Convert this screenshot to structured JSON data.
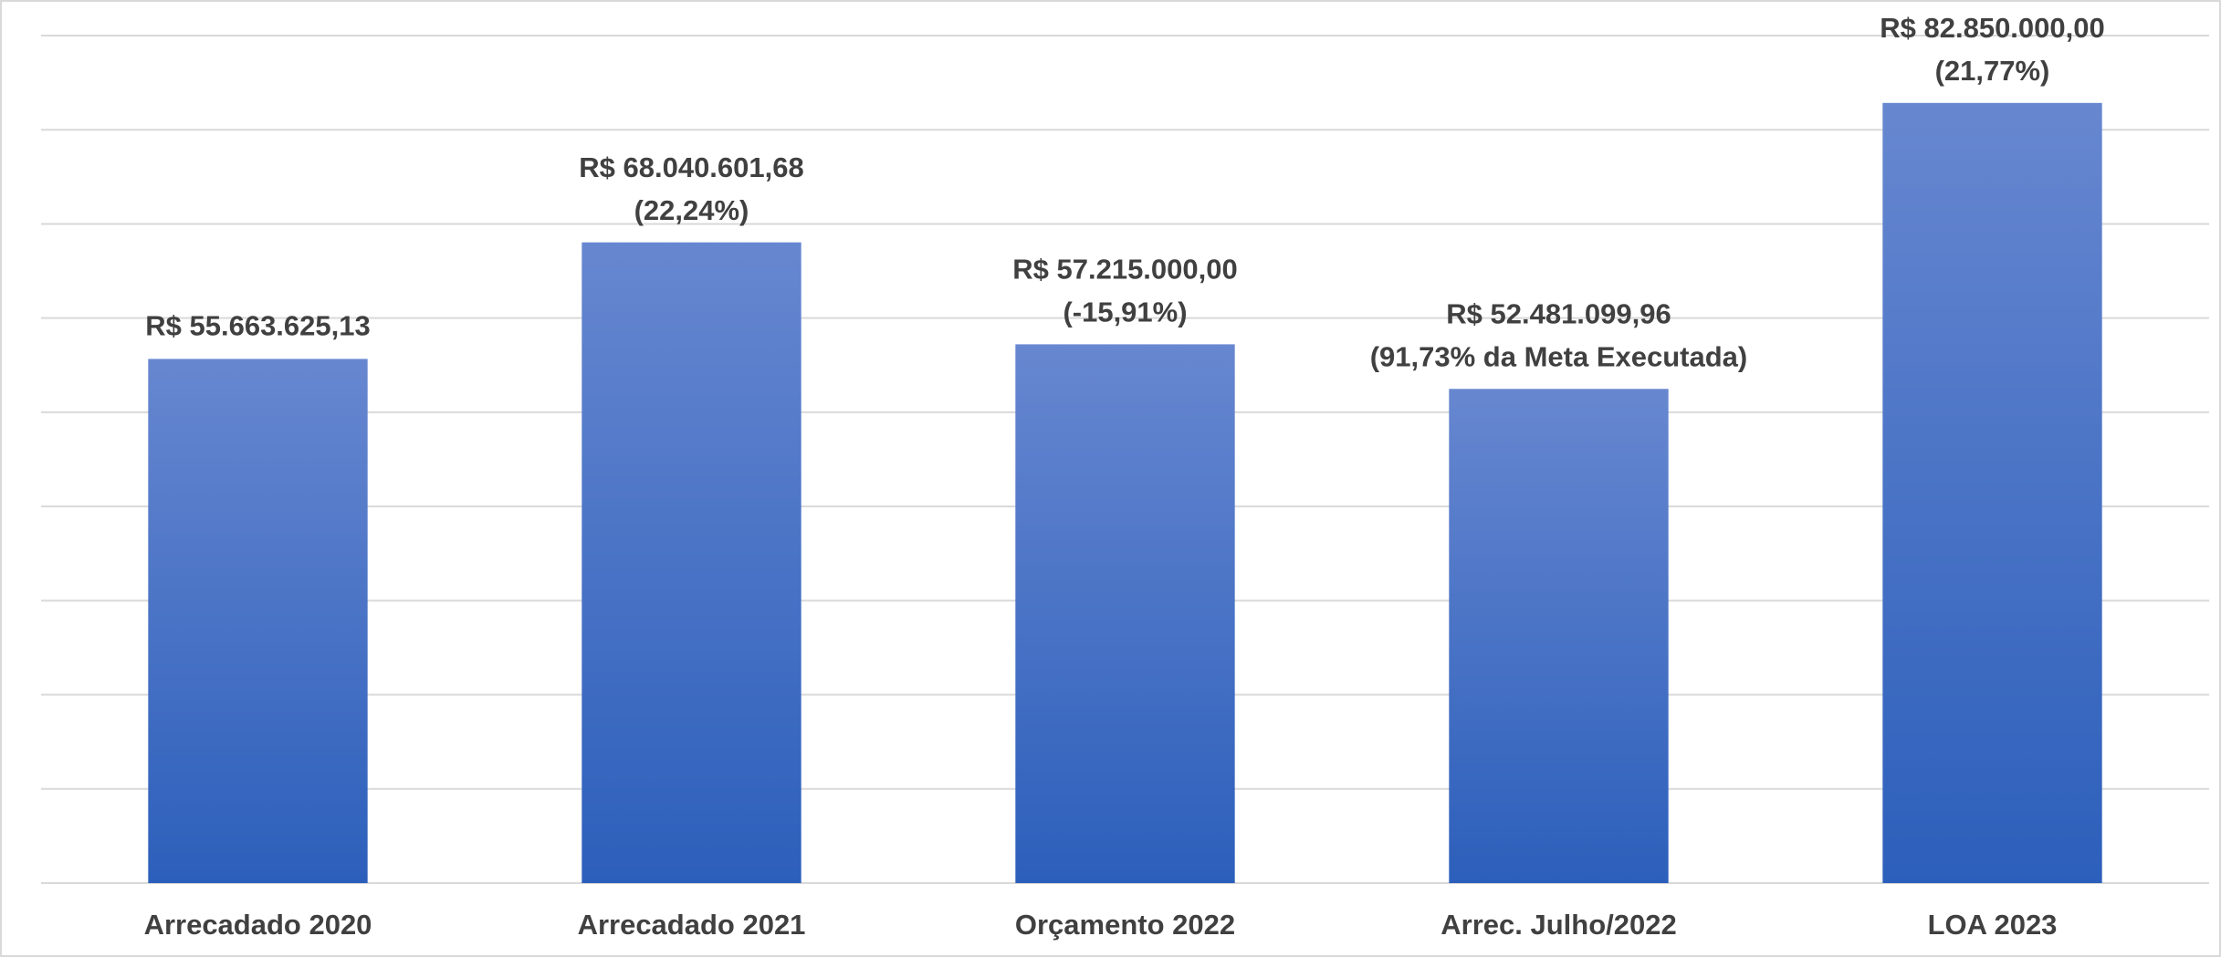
{
  "chart_data": {
    "type": "bar",
    "categories": [
      "Arrecadado 2020",
      "Arrecadado 2021",
      "Orçamento 2022",
      "Arrec. Julho/2022",
      "LOA 2023"
    ],
    "values": [
      55663625.13,
      68040601.68,
      57215000,
      52481099.96,
      82850000
    ],
    "value_labels": [
      "R$ 55.663.625,13",
      "R$ 68.040.601,68",
      "R$ 57.215.000,00",
      "R$ 52.481.099,96",
      "R$ 82.850.000,00"
    ],
    "annotations": [
      null,
      "(22,24%)",
      "(-15,91%)",
      "(91,73% da Meta Executada)",
      "(21,77%)"
    ],
    "color": [
      "#6787d0",
      "#2c5fbb"
    ],
    "ylim": [
      0,
      90000000
    ],
    "yticks": [
      0,
      10000000,
      20000000,
      30000000,
      40000000,
      50000000,
      60000000,
      70000000,
      80000000,
      90000000
    ],
    "grid": true
  }
}
